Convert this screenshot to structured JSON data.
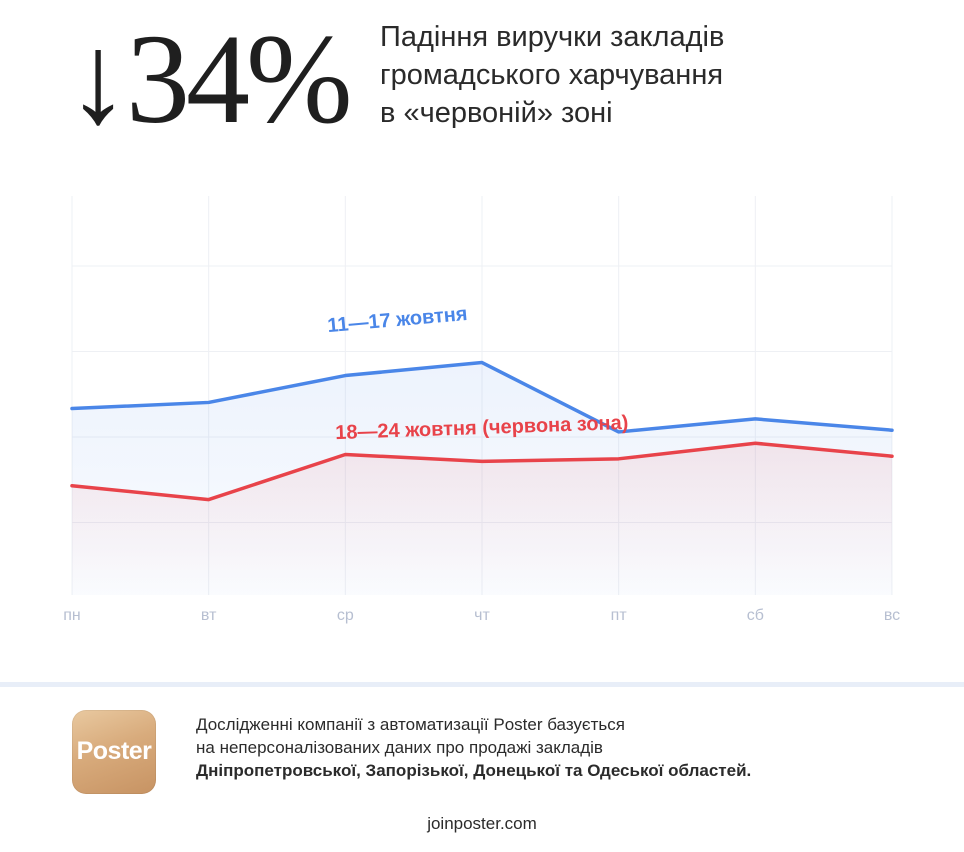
{
  "hero": {
    "value": "↓34%"
  },
  "headline": {
    "line1": "Падіння виручки закладів",
    "line2": "громадського харчування",
    "line3": "в «червоній» зоні"
  },
  "chart_data": {
    "type": "line",
    "categories": [
      "пн",
      "вт",
      "ср",
      "чт",
      "пт",
      "сб",
      "вс"
    ],
    "grid": true,
    "legend": "inline labels on lines",
    "series": [
      {
        "name": "11—17 жовтня",
        "color": "#4a86e8",
        "values": [
          2.15,
          2.22,
          2.53,
          2.68,
          1.88,
          2.03,
          1.9
        ]
      },
      {
        "name": "18—24 жовтня (червона зона)",
        "color": "#e8434a",
        "values": [
          1.26,
          1.1,
          1.62,
          1.54,
          1.57,
          1.75,
          1.6
        ]
      }
    ],
    "ylim": [
      0,
      4.6
    ]
  },
  "footer": {
    "logo_text": "Poster",
    "line1": "Дослідженні компанії з автоматизації Poster базується",
    "line2": "на неперсоналізованих даних про продажі закладів",
    "line3": "Дніпропетровської, Запорізької, Донецької та Одеської областей.",
    "site": "joinposter.com"
  }
}
